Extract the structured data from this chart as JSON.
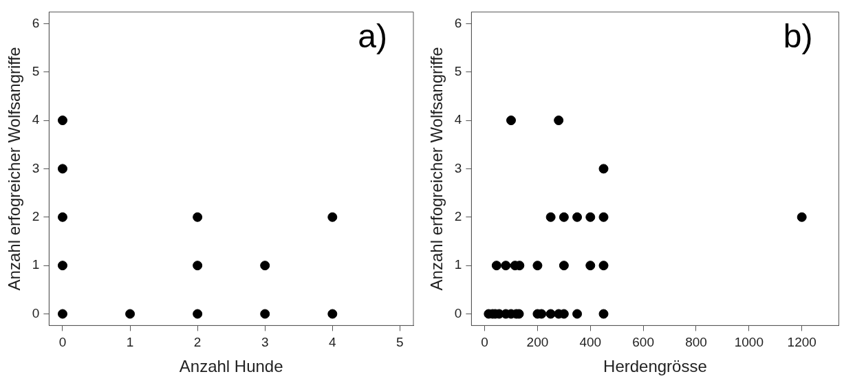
{
  "chart_data": [
    {
      "type": "scatter",
      "xlabel": "Anzahl Hunde",
      "ylabel": "Anzahl erfogreicher Wolfsangriffe",
      "annotations": [
        "a)"
      ],
      "xlim": [
        -0.2,
        5.2
      ],
      "xticks": [
        0,
        1,
        2,
        3,
        4,
        5
      ],
      "ylim": [
        -0.24,
        6.24
      ],
      "yticks": [
        0,
        1,
        2,
        3,
        4,
        5,
        6
      ],
      "grid": false,
      "legend": false,
      "marker": "circle",
      "series": [
        {
          "color": "#000000",
          "x": [
            0,
            0,
            0,
            0,
            0,
            1,
            2,
            2,
            2,
            3,
            3,
            4,
            4
          ],
          "values": [
            0,
            1,
            2,
            3,
            4,
            0,
            0,
            1,
            2,
            0,
            1,
            0,
            2
          ]
        }
      ]
    },
    {
      "type": "scatter",
      "xlabel": "Herdengrösse",
      "ylabel": "Anzahl erfogreicher Wolfsangriffe",
      "annotations": [
        "b)"
      ],
      "xlim": [
        -50,
        1340
      ],
      "xticks": [
        0,
        200,
        400,
        600,
        800,
        1000,
        1200
      ],
      "ylim": [
        -0.24,
        6.24
      ],
      "yticks": [
        0,
        1,
        2,
        3,
        4,
        5,
        6
      ],
      "grid": false,
      "legend": false,
      "marker": "circle",
      "series": [
        {
          "color": "#000000",
          "x": [
            15,
            30,
            40,
            55,
            80,
            100,
            120,
            130,
            200,
            215,
            250,
            280,
            300,
            350,
            450,
            45,
            80,
            115,
            132,
            200,
            300,
            400,
            450,
            250,
            300,
            350,
            400,
            450,
            450,
            100,
            280,
            1200
          ],
          "values": [
            0,
            0,
            0,
            0,
            0,
            0,
            0,
            0,
            0,
            0,
            0,
            0,
            0,
            0,
            0,
            1,
            1,
            1,
            1,
            1,
            1,
            1,
            1,
            2,
            2,
            2,
            2,
            2,
            3,
            4,
            4,
            2
          ]
        }
      ]
    }
  ]
}
